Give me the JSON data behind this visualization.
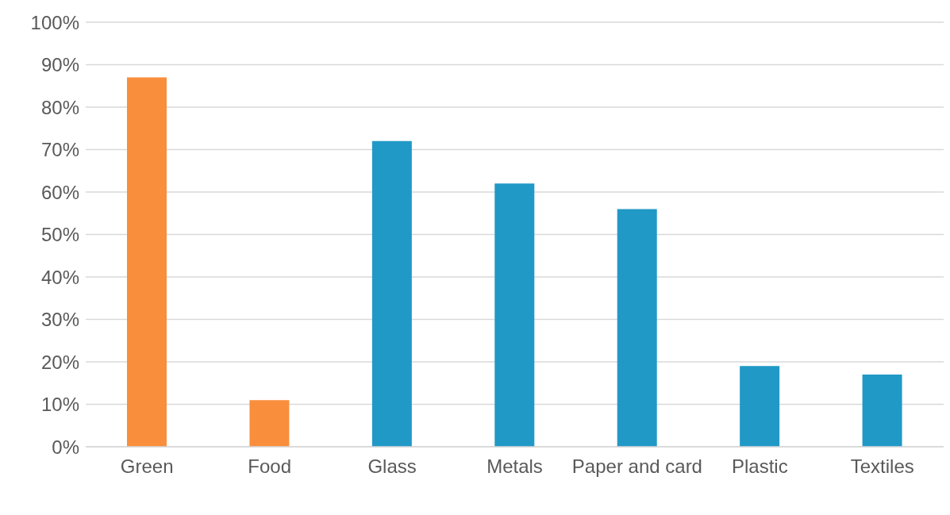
{
  "chart_data": {
    "type": "bar",
    "categories": [
      "Green",
      "Food",
      "Glass",
      "Metals",
      "Paper and card",
      "Plastic",
      "Textiles"
    ],
    "values": [
      87,
      11,
      72,
      62,
      56,
      19,
      17
    ],
    "colors": [
      "#f98e3d",
      "#f98e3d",
      "#2199c6",
      "#2199c6",
      "#2199c6",
      "#2199c6",
      "#2199c6"
    ],
    "ylim": [
      0,
      100
    ],
    "yticks": [
      {
        "value": 0,
        "label": "0%"
      },
      {
        "value": 10,
        "label": "10%"
      },
      {
        "value": 20,
        "label": "20%"
      },
      {
        "value": 30,
        "label": "30%"
      },
      {
        "value": 40,
        "label": "40%"
      },
      {
        "value": 50,
        "label": "50%"
      },
      {
        "value": 60,
        "label": "60%"
      },
      {
        "value": 70,
        "label": "70%"
      },
      {
        "value": 80,
        "label": "80%"
      },
      {
        "value": 90,
        "label": "90%"
      },
      {
        "value": 100,
        "label": "100%"
      }
    ],
    "grid": "y",
    "legend": false
  }
}
